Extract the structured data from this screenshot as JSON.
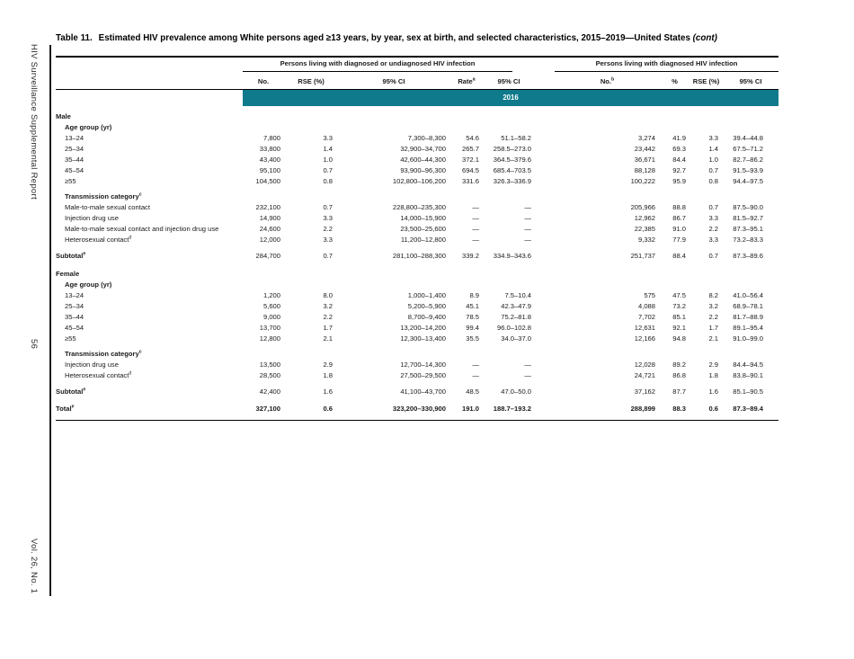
{
  "sidebar": {
    "top_text": "HIV Surveillance Supplemental Report",
    "page_number": "56",
    "bottom_text": "Vol. 26, No. 1"
  },
  "title": {
    "label": "Table 11.",
    "text": "Estimated HIV prevalence among White persons aged ≥13 years, by year, sex at birth, and selected characteristics, 2015–2019—United States",
    "cont": "(cont)"
  },
  "table": {
    "accent_color": "#0e7a8b",
    "group_headers": [
      "Persons living with diagnosed or undiagnosed HIV infection",
      "Persons living with diagnosed HIV infection"
    ],
    "column_headers": [
      {
        "label": "No.",
        "sup": ""
      },
      {
        "label": "RSE (%)",
        "sup": ""
      },
      {
        "label": "95% CI",
        "sup": ""
      },
      {
        "label": "Rate",
        "sup": "a"
      },
      {
        "label": "95% CI",
        "sup": ""
      },
      {
        "label": "No.",
        "sup": "b"
      },
      {
        "label": "%",
        "sup": ""
      },
      {
        "label": "RSE (%)",
        "sup": ""
      },
      {
        "label": "95% CI",
        "sup": ""
      }
    ],
    "year_band": "2016",
    "rows": [
      {
        "type": "section",
        "label": "Male"
      },
      {
        "type": "subhead",
        "label": "Age group (yr)",
        "sup": "",
        "indent": 1
      },
      {
        "type": "data",
        "label": "13–24",
        "indent": 1,
        "values": [
          "7,800",
          "3.3",
          "7,300–8,300",
          "54.6",
          "51.1–58.2",
          "3,274",
          "41.9",
          "3.3",
          "39.4–44.8"
        ]
      },
      {
        "type": "data",
        "label": "25–34",
        "indent": 1,
        "values": [
          "33,800",
          "1.4",
          "32,900–34,700",
          "265.7",
          "258.5–273.0",
          "23,442",
          "69.3",
          "1.4",
          "67.5–71.2"
        ]
      },
      {
        "type": "data",
        "label": "35–44",
        "indent": 1,
        "values": [
          "43,400",
          "1.0",
          "42,600–44,300",
          "372.1",
          "364.5–379.6",
          "36,671",
          "84.4",
          "1.0",
          "82.7–86.2"
        ]
      },
      {
        "type": "data",
        "label": "45–54",
        "indent": 1,
        "values": [
          "95,100",
          "0.7",
          "93,900–96,300",
          "694.5",
          "685.4–703.5",
          "88,128",
          "92.7",
          "0.7",
          "91.5–93.9"
        ]
      },
      {
        "type": "data",
        "label": "≥55",
        "indent": 1,
        "values": [
          "104,500",
          "0.8",
          "102,800–106,200",
          "331.6",
          "326.3–336.9",
          "100,222",
          "95.9",
          "0.8",
          "94.4–97.5"
        ]
      },
      {
        "type": "gap",
        "h": 5
      },
      {
        "type": "subhead",
        "label": "Transmission category",
        "sup": "c",
        "indent": 1
      },
      {
        "type": "data",
        "label": "Male-to-male sexual contact",
        "indent": 1,
        "values": [
          "232,100",
          "0.7",
          "228,800–235,300",
          "—",
          "—",
          "205,966",
          "88.8",
          "0.7",
          "87.5–90.0"
        ]
      },
      {
        "type": "data",
        "label": "Injection drug use",
        "indent": 1,
        "values": [
          "14,900",
          "3.3",
          "14,000–15,900",
          "—",
          "—",
          "12,962",
          "86.7",
          "3.3",
          "81.5–92.7"
        ]
      },
      {
        "type": "data",
        "label": "Male-to-male sexual contact and injection drug use",
        "indent": 1,
        "values": [
          "24,600",
          "2.2",
          "23,500–25,600",
          "—",
          "—",
          "22,385",
          "91.0",
          "2.2",
          "87.3–95.1"
        ]
      },
      {
        "type": "data",
        "label": "Heterosexual contact",
        "sup": "d",
        "indent": 1,
        "values": [
          "12,000",
          "3.3",
          "11,200–12,800",
          "—",
          "—",
          "9,332",
          "77.9",
          "3.3",
          "73.2–83.3"
        ]
      },
      {
        "type": "gap",
        "h": 6
      },
      {
        "type": "subtotal",
        "label": "Subtotal",
        "sup": "e",
        "indent": 0,
        "values": [
          "284,700",
          "0.7",
          "281,100–288,300",
          "339.2",
          "334.9–343.6",
          "251,737",
          "88.4",
          "0.7",
          "87.3–89.6"
        ]
      },
      {
        "type": "gap",
        "h": 8
      },
      {
        "type": "section",
        "label": "Female"
      },
      {
        "type": "subhead",
        "label": "Age group (yr)",
        "sup": "",
        "indent": 1
      },
      {
        "type": "data",
        "label": "13–24",
        "indent": 1,
        "values": [
          "1,200",
          "8.0",
          "1,000–1,400",
          "8.9",
          "7.5–10.4",
          "575",
          "47.5",
          "8.2",
          "41.0–56.4"
        ]
      },
      {
        "type": "data",
        "label": "25–34",
        "indent": 1,
        "values": [
          "5,600",
          "3.2",
          "5,200–5,900",
          "45.1",
          "42.3–47.9",
          "4,088",
          "73.2",
          "3.2",
          "68.9–78.1"
        ]
      },
      {
        "type": "data",
        "label": "35–44",
        "indent": 1,
        "values": [
          "9,000",
          "2.2",
          "8,700–9,400",
          "78.5",
          "75.2–81.8",
          "7,702",
          "85.1",
          "2.2",
          "81.7–88.9"
        ]
      },
      {
        "type": "data",
        "label": "45–54",
        "indent": 1,
        "values": [
          "13,700",
          "1.7",
          "13,200–14,200",
          "99.4",
          "96.0–102.8",
          "12,631",
          "92.1",
          "1.7",
          "89.1–95.4"
        ]
      },
      {
        "type": "data",
        "label": "≥55",
        "indent": 1,
        "values": [
          "12,800",
          "2.1",
          "12,300–13,400",
          "35.5",
          "34.0–37.0",
          "12,166",
          "94.8",
          "2.1",
          "91.0–99.0"
        ]
      },
      {
        "type": "gap",
        "h": 5
      },
      {
        "type": "subhead",
        "label": "Transmission category",
        "sup": "c",
        "indent": 1
      },
      {
        "type": "data",
        "label": "Injection drug use",
        "indent": 1,
        "values": [
          "13,500",
          "2.9",
          "12,700–14,300",
          "—",
          "—",
          "12,028",
          "89.2",
          "2.9",
          "84.4–94.5"
        ]
      },
      {
        "type": "data",
        "label": "Heterosexual contact",
        "sup": "d",
        "indent": 1,
        "values": [
          "28,500",
          "1.8",
          "27,500–29,500",
          "—",
          "—",
          "24,721",
          "86.8",
          "1.8",
          "83.8–90.1"
        ]
      },
      {
        "type": "gap",
        "h": 6
      },
      {
        "type": "subtotal",
        "label": "Subtotal",
        "sup": "e",
        "indent": 0,
        "values": [
          "42,400",
          "1.6",
          "41,100–43,700",
          "48.5",
          "47.0–50.0",
          "37,162",
          "87.7",
          "1.6",
          "85.1–90.5"
        ]
      },
      {
        "type": "gap",
        "h": 7
      },
      {
        "type": "total",
        "label": "Total",
        "sup": "e",
        "indent": 0,
        "values": [
          "327,100",
          "0.6",
          "323,200–330,900",
          "191.0",
          "188.7–193.2",
          "288,899",
          "88.3",
          "0.6",
          "87.3–89.4"
        ]
      },
      {
        "type": "gap",
        "h": 5
      }
    ]
  }
}
